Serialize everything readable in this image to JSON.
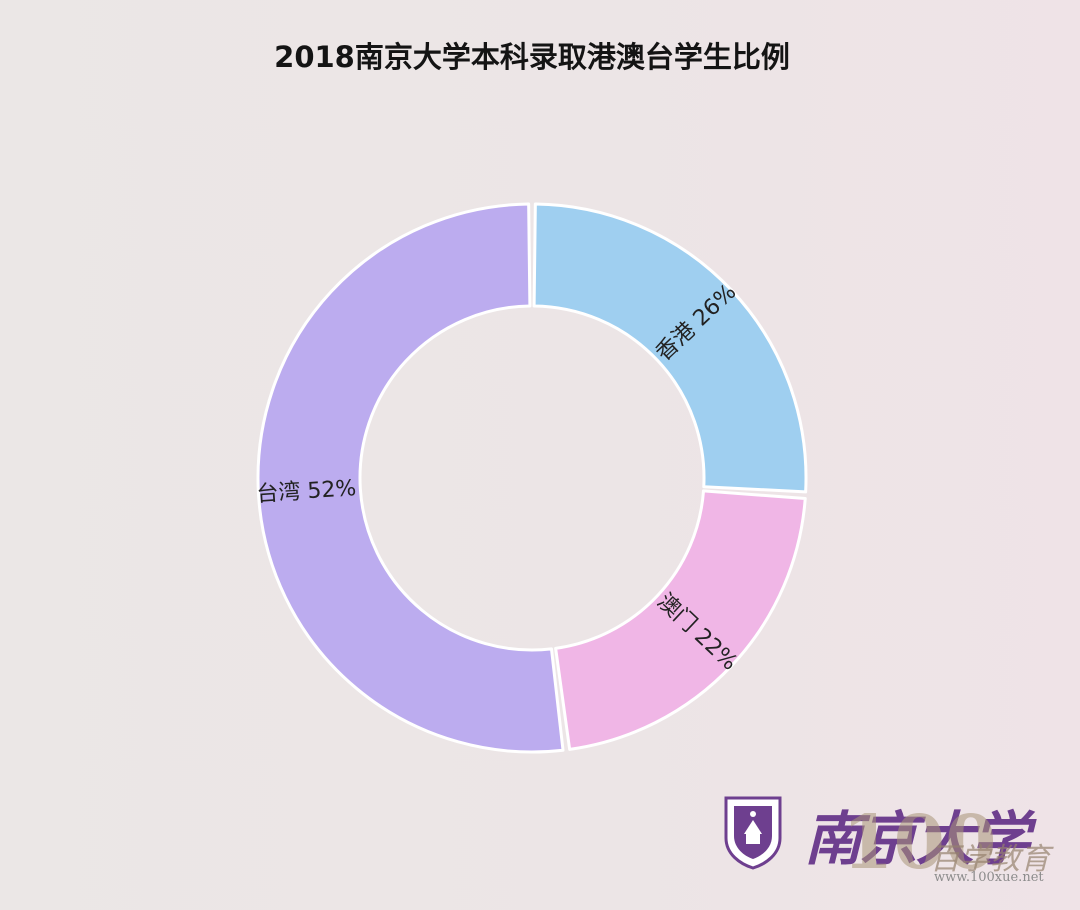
{
  "chart_data": {
    "type": "pie",
    "title": "2018南京大学本科录取港澳台学生比例",
    "categories": [
      "香港",
      "澳门",
      "台湾"
    ],
    "values": [
      26,
      22,
      52
    ],
    "labels": [
      "香港 26%",
      "澳门 22%",
      "台湾 52%"
    ],
    "colors": [
      "#9fcff0",
      "#f0b6e6",
      "#bcacef"
    ],
    "donut": true,
    "legend": "none"
  },
  "logo": {
    "name": "南京大学",
    "watermark": "100",
    "watermark_cn": "百学教育",
    "watermark_url": "www.100xue.net"
  }
}
